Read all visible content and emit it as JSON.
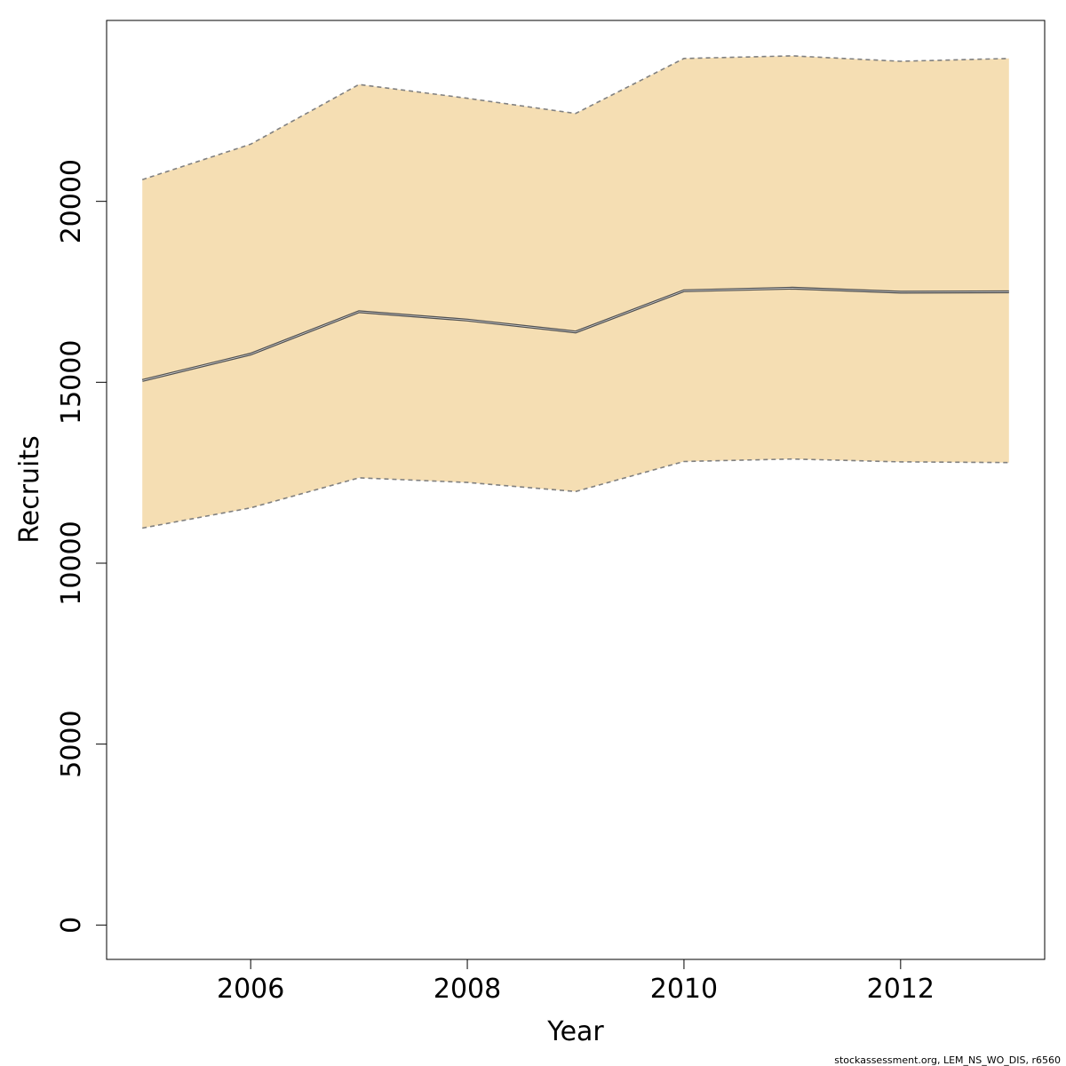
{
  "chart_data": {
    "type": "area",
    "xlabel": "Year",
    "ylabel": "Recruits",
    "xlim": [
      2004.67,
      2013.33
    ],
    "ylim": [
      -950,
      25000
    ],
    "x_ticks": [
      2006,
      2008,
      2010,
      2012
    ],
    "x_tick_labels": [
      "2006",
      "2008",
      "2010",
      "2012"
    ],
    "y_ticks": [
      0,
      5000,
      10000,
      15000,
      20000
    ],
    "y_tick_labels": [
      "0",
      "5000",
      "10000",
      "15000",
      "20000"
    ],
    "x": [
      2005,
      2006,
      2007,
      2008,
      2009,
      2010,
      2011,
      2012,
      2013
    ],
    "series": [
      {
        "role": "estimate",
        "values": [
          15050,
          15780,
          16950,
          16720,
          16390,
          17530,
          17600,
          17490,
          17500
        ]
      },
      {
        "role": "upper",
        "values": [
          20600,
          21580,
          23230,
          22850,
          22430,
          23950,
          24020,
          23870,
          23950
        ]
      },
      {
        "role": "lower",
        "values": [
          10970,
          11530,
          12360,
          12230,
          11980,
          12810,
          12880,
          12800,
          12780
        ]
      }
    ],
    "colors": {
      "band_fill": "#f5deb3",
      "estimate_line": "#505050",
      "bound_line": "#808080",
      "axis": "#000000"
    },
    "grid": false,
    "legend": "none",
    "credit": "stockassessment.org, LEM_NS_WO_DIS, r6560"
  }
}
